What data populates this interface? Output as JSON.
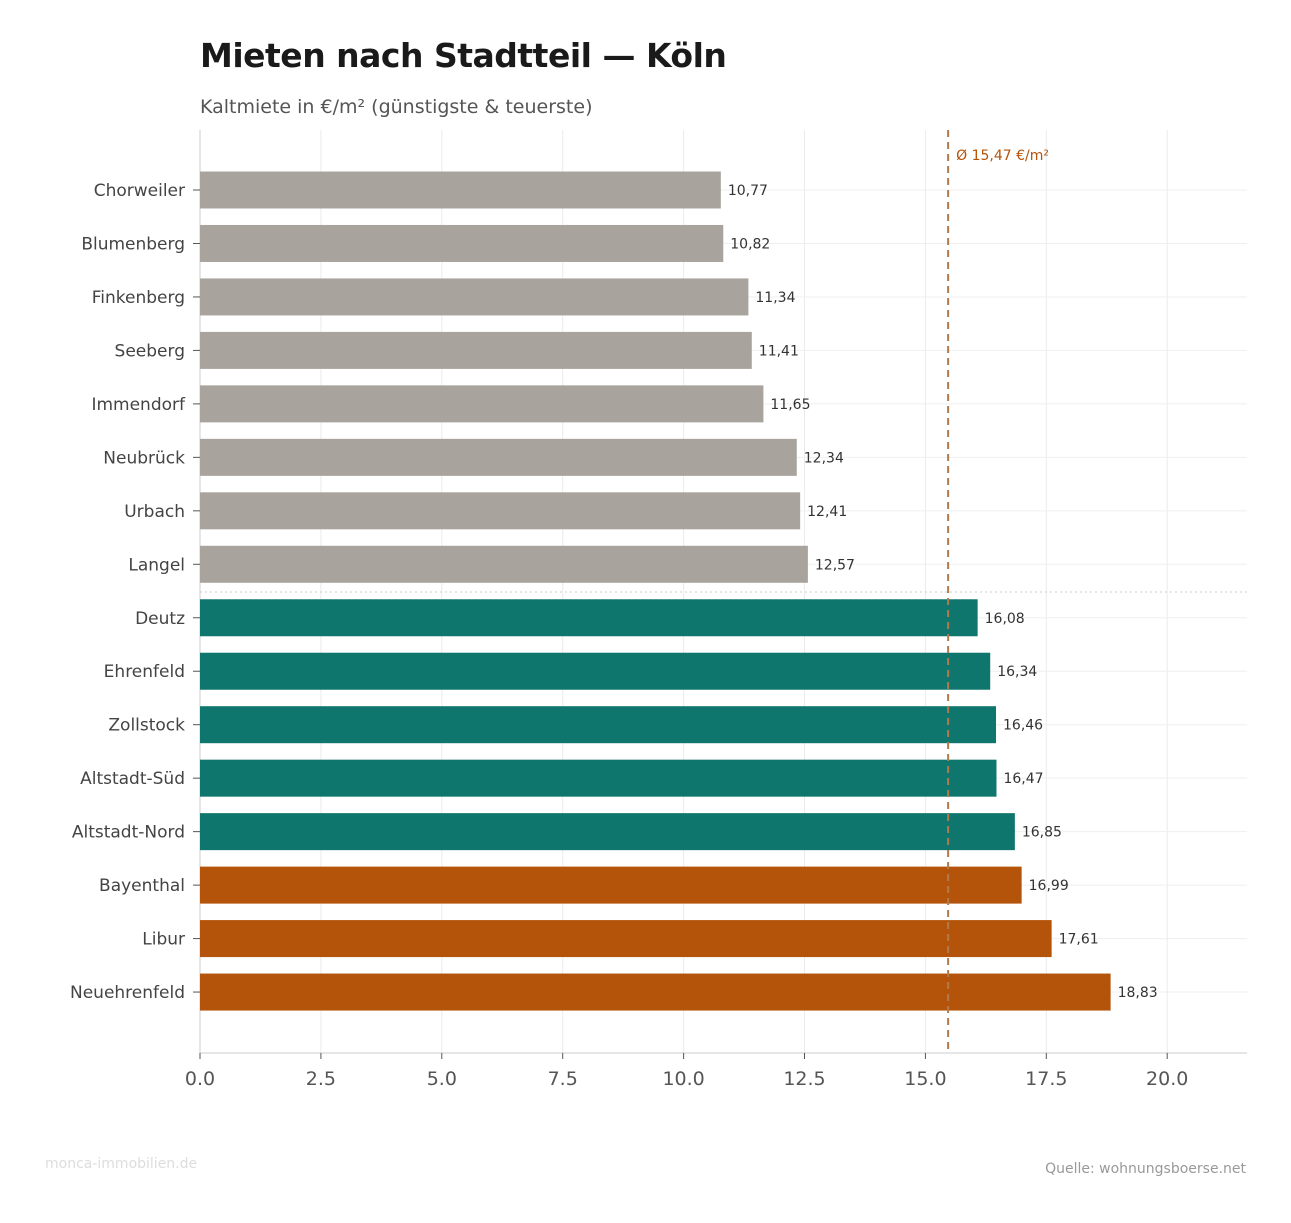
{
  "chart_data": {
    "type": "bar",
    "orientation": "horizontal",
    "title": "Mieten nach Stadtteil — Köln",
    "subtitle": "Kaltmiete in €/m² (günstigste & teuerste)",
    "categories": [
      "Chorweiler",
      "Blumenberg",
      "Finkenberg",
      "Seeberg",
      "Immendorf",
      "Neubrück",
      "Urbach",
      "Langel",
      "Deutz",
      "Ehrenfeld",
      "Zollstock",
      "Altstadt-Süd",
      "Altstadt-Nord",
      "Bayenthal",
      "Libur",
      "Neuehrenfeld"
    ],
    "values": [
      10.77,
      10.82,
      11.34,
      11.41,
      11.65,
      12.34,
      12.41,
      12.57,
      16.08,
      16.34,
      16.46,
      16.47,
      16.85,
      16.99,
      17.61,
      18.83
    ],
    "value_labels": [
      "10,77",
      "10,82",
      "11,34",
      "11,41",
      "11,65",
      "12,34",
      "12,41",
      "12,57",
      "16,08",
      "16,34",
      "16,46",
      "16,47",
      "16,85",
      "16,99",
      "17,61",
      "18,83"
    ],
    "bar_colors": [
      "#a8a39c",
      "#a8a39c",
      "#a8a39c",
      "#a8a39c",
      "#a8a39c",
      "#a8a39c",
      "#a8a39c",
      "#a8a39c",
      "#0f766e",
      "#0f766e",
      "#0f766e",
      "#0f766e",
      "#0f766e",
      "#b4540a",
      "#b4540a",
      "#b4540a"
    ],
    "xlim": [
      0,
      21.65
    ],
    "xticks": [
      0,
      2.5,
      5,
      7.5,
      10,
      12.5,
      15,
      17.5,
      20
    ],
    "xtick_labels": [
      "0.0",
      "2.5",
      "5.0",
      "7.5",
      "10.0",
      "12.5",
      "15.0",
      "17.5",
      "20.0"
    ],
    "xlabel": "",
    "ylabel": "",
    "grid": true,
    "reference_line": {
      "value": 15.47,
      "label": "Ø 15,47 €/m²",
      "color": "#b07a4a",
      "label_color": "#b4540a",
      "style": "dashed"
    },
    "group_separator_after": "Langel"
  },
  "footer": {
    "watermark": "monca-immobilien.de",
    "source": "Quelle: wohnungsboerse.net"
  }
}
